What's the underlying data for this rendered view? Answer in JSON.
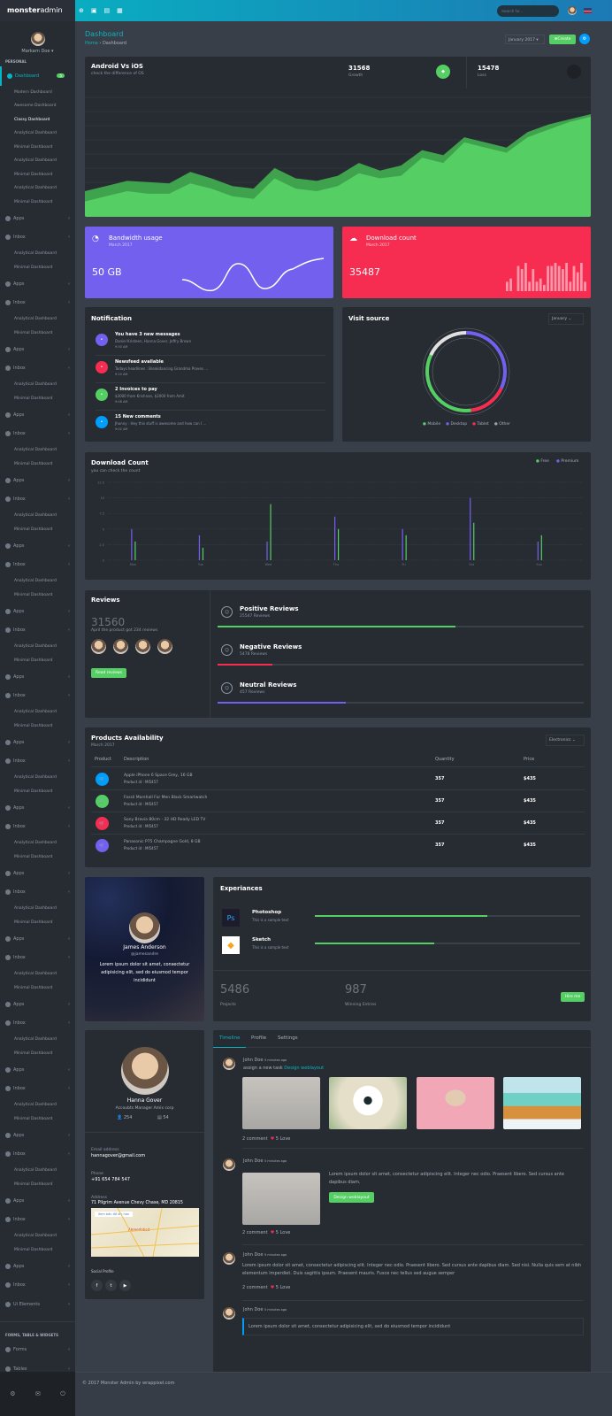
{
  "brand": {
    "name_bold": "monster",
    "name_light": "admin"
  },
  "topbar": {
    "search_placeholder": "Search for...",
    "icons": [
      "back-icon",
      "message-icon",
      "inbox-icon",
      "grid-icon"
    ]
  },
  "user": {
    "name": "Markarn Doe"
  },
  "sidebar": {
    "section_personal": "PERSONAL",
    "dashboard": {
      "label": "Dashboard",
      "badge": "5"
    },
    "dashboard_sub": [
      "Modern Dashboard",
      "Awesome Dashboard",
      "Classy Dashboard",
      "Analytical Dashboard",
      "Minimal Dashboard",
      "Analytical Dashboard",
      "Minimal Dashboard",
      "Analytical Dashboard",
      "Minimal Dashboard"
    ],
    "active_sub": "Classy Dashboard",
    "repeat_group": [
      {
        "label": "Apps",
        "kind": "menu"
      },
      {
        "label": "Inbox",
        "kind": "menu"
      },
      {
        "label": "Analytical Dashboard",
        "kind": "sub"
      },
      {
        "label": "Minimal Dashboard",
        "kind": "sub"
      }
    ],
    "repeat_count": 16,
    "tail_items": [
      {
        "label": "Apps",
        "kind": "menu"
      },
      {
        "label": "Inbox",
        "kind": "menu"
      },
      {
        "label": "Ui Elements",
        "kind": "menu"
      }
    ],
    "section_forms": "FORMS, TABLE & WIDGETS",
    "forms_items": [
      "Forms",
      "Tables",
      "Widgets"
    ],
    "footer_icons": [
      "settings-icon",
      "mail-icon",
      "power-icon"
    ]
  },
  "page": {
    "title": "Dashboard",
    "breadcrumb": [
      "Home",
      "Dashboard"
    ],
    "month_select": "January 2017",
    "create_label": "Create"
  },
  "os_card": {
    "title": "Android Vs iOS",
    "subtitle": "check the difference of OS",
    "growth_value": "31568",
    "growth_label": "Growth",
    "loss_value": "15478",
    "loss_label": "Loss",
    "chart_data": {
      "type": "area",
      "series": [
        {
          "values": [
            20,
            24,
            28,
            27,
            26,
            35,
            30,
            24,
            22,
            38,
            30,
            28,
            32,
            42,
            36,
            40,
            52,
            48,
            62,
            58,
            54,
            66,
            72,
            76,
            80
          ]
        },
        {
          "values": [
            12,
            16,
            20,
            18,
            18,
            26,
            22,
            16,
            14,
            30,
            22,
            20,
            24,
            34,
            30,
            32,
            46,
            42,
            58,
            54,
            50,
            62,
            68,
            74,
            78
          ]
        }
      ]
    }
  },
  "bandwidth": {
    "title": "Bandwidth usage",
    "date": "March 2017",
    "value": "50 GB",
    "color": "#7460ee"
  },
  "downloads_mini": {
    "title": "Download count",
    "date": "March 2017",
    "value": "35487",
    "color": "#f62d51",
    "bars": [
      3,
      4,
      0,
      8,
      7,
      9,
      3,
      7,
      3,
      4,
      2,
      8,
      8,
      9,
      8,
      7,
      9,
      3,
      8,
      6,
      9,
      3
    ]
  },
  "notification": {
    "title": "Notification",
    "items": [
      {
        "title": "You have 3 new messages",
        "text": "Daniel Kristeen, Hanna Gover, Jeffry Brown",
        "time": "9:30 AM",
        "color": "#7460ee",
        "icon": "mail-icon"
      },
      {
        "title": "Newsfeed available",
        "text": "Todays headlines : Breakdancing Grandma Proves ...",
        "time": "9:10 AM",
        "color": "#f62d51",
        "icon": "globe-icon"
      },
      {
        "title": "2 Invoices to pay",
        "text": "$3000 from Krishnan, $2000 from Amit",
        "time": "9:08 AM",
        "color": "#55ce63",
        "icon": "dollar-icon"
      },
      {
        "title": "15 New comments",
        "text": "Jhonny : Hey this stuff is awesome and how can I ...",
        "time": "9:02 AM",
        "color": "#009efb",
        "icon": "comment-icon"
      }
    ]
  },
  "visit_source": {
    "title": "Visit source",
    "select": "January",
    "legend": [
      "Mobile",
      "Desktop",
      "Tablet",
      "Other"
    ],
    "chart_data": {
      "type": "pie",
      "categories": [
        "Desktop",
        "Tablet",
        "Mobile",
        "Other"
      ],
      "values": [
        32,
        16,
        34,
        18
      ],
      "colors": [
        "#7460ee",
        "#f62d51",
        "#55ce63",
        "#e0e0e0"
      ]
    }
  },
  "download_count": {
    "title": "Download Count",
    "subtitle": "you can check the count",
    "legend": [
      "Free",
      "Premium"
    ],
    "chart_data": {
      "type": "bar",
      "categories": [
        "Mon",
        "Tue",
        "Wed",
        "Thu",
        "Fri",
        "Sat",
        "Sun"
      ],
      "series": [
        {
          "name": "Premium",
          "values": [
            5,
            4,
            3,
            7,
            5,
            10,
            3
          ],
          "color": "#7460ee"
        },
        {
          "name": "Free",
          "values": [
            3,
            2,
            9,
            5,
            4,
            6,
            4
          ],
          "color": "#55ce63"
        }
      ],
      "yticks": [
        "0",
        "2.5",
        "5",
        "7.5",
        "10",
        "12.5"
      ],
      "ylim": [
        0,
        12.5
      ]
    }
  },
  "reviews": {
    "title": "Reviews",
    "total": "31560",
    "caption": "April the product got 234 reviews",
    "button": "Read reviews",
    "items": [
      {
        "title": "Positive Reviews",
        "count": "25547 Reviews",
        "percent": 65,
        "color": "#55ce63",
        "icon": "happy-face-icon"
      },
      {
        "title": "Negative Reviews",
        "count": "5478 Reviews",
        "percent": 15,
        "color": "#f62d51",
        "icon": "sad-face-icon"
      },
      {
        "title": "Neutral Reviews",
        "count": "457 Reviews",
        "percent": 35,
        "color": "#7460ee",
        "icon": "neutral-face-icon"
      }
    ]
  },
  "products": {
    "title": "Products Availability",
    "date": "March 2017",
    "filter": "Electronics",
    "headers": [
      "Product",
      "Description",
      "Quantity",
      "Price"
    ],
    "rows": [
      {
        "name": "Apple iPhone 6 Space Grey, 16 GB",
        "id": "Product id : MI5457",
        "qty": "357",
        "price": "$435",
        "color": "#009efb"
      },
      {
        "name": "Fossil Marshall For Men Black Smartwatch",
        "id": "Product id : MI5457",
        "qty": "357",
        "price": "$435",
        "color": "#55ce63"
      },
      {
        "name": "Sony Bravia 80cm - 32 HD Ready LED TV",
        "id": "Product id : MI5457",
        "qty": "357",
        "price": "$435",
        "color": "#f62d51"
      },
      {
        "name": "Panasonic P75 Champagne Gold, 8 GB",
        "id": "Product id : MI5457",
        "qty": "357",
        "price": "$435",
        "color": "#7460ee"
      }
    ]
  },
  "profile_card": {
    "name": "James Anderson",
    "handle": "@jamesandre",
    "text": "Lorem ipsum dolor sit amet, consectetur adipisicing elit, sed do eiusmod tempor incididunt"
  },
  "experiences": {
    "title": "Experiances",
    "items": [
      {
        "name": "Photoshop",
        "text": "This is a sample text",
        "percent": 65,
        "logo": "Ps"
      },
      {
        "name": "Sketch",
        "text": "This is a sample text",
        "percent": 45,
        "logo": "sketch"
      }
    ],
    "projects_value": "5486",
    "projects_label": "Projects",
    "entries_value": "987",
    "entries_label": "Winning Entries",
    "hire": "Hire me"
  },
  "hanna": {
    "name": "Hanna Gover",
    "role": "Accoubts Manager Amix corp",
    "followers": "254",
    "posts": "54",
    "email_label": "Email address",
    "email": "hannagover@gmail.com",
    "phone_label": "Phone",
    "phone": "+91 654 784 547",
    "address_label": "Address",
    "address": "71 Pilgrim Avenue Chevy Chase, MD 20815",
    "map_link": "Xem bản đồ lớn hơn",
    "map_city": "Ahmedabad",
    "social_label": "Social Profile",
    "social": [
      "facebook-icon",
      "twitter-icon",
      "youtube-icon"
    ]
  },
  "timeline": {
    "tabs": [
      "Timeline",
      "Profile",
      "Settings"
    ],
    "active_tab": "Timeline",
    "posts": [
      {
        "author": "John Doe",
        "time": "5 minutes ago",
        "text": "assign a new task",
        "link": "Design weblayout",
        "comments": "2 comment",
        "love": "5 Love"
      },
      {
        "author": "John Doe",
        "time": "5 minutes ago",
        "text": "Lorem ipsum dolor sit amet, consectetur adipiscing elit. Integer nec odio. Praesent libero. Sed cursus ante dapibus diam.",
        "button": "Design weblayout",
        "comments": "2 comment",
        "love": "5 Love"
      },
      {
        "author": "John Doe",
        "time": "5 minutes ago",
        "text": "Lorem ipsum dolor sit amet, consectetur adipiscing elit. Integer nec odio. Praesent libero. Sed cursus ante dapibus diam. Sed nisi. Nulla quis sem at nibh elementum imperdiet. Duis sagittis ipsum. Praesent mauris. Fusce nec tellus sed augue semper",
        "comments": "2 comment",
        "love": "5 Love"
      },
      {
        "author": "John Doe",
        "time": "5 minutes ago",
        "quote": "Lorem ipsum dolor sit amet, consectetur adipisicing elit, sed do eiusmod tempor incididunt"
      }
    ]
  },
  "footer": {
    "text": "© 2017 Monster Admin by wrappixel.com"
  }
}
